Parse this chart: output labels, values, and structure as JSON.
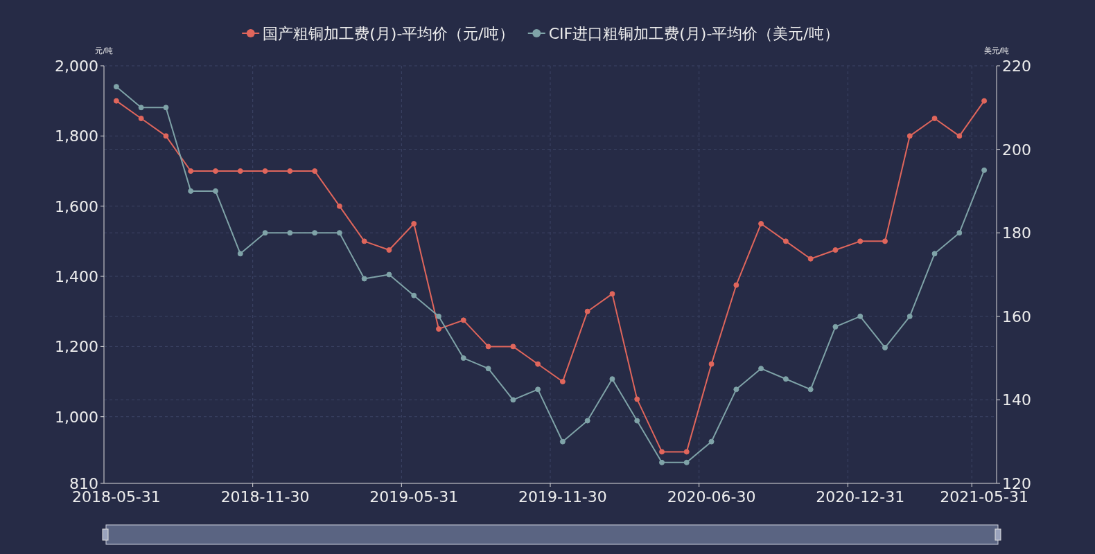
{
  "chart_data": {
    "type": "line",
    "categories": [
      "2018-05-31",
      null,
      null,
      null,
      null,
      null,
      "2018-11-30",
      null,
      null,
      null,
      null,
      null,
      "2019-05-31",
      null,
      null,
      null,
      null,
      null,
      "2019-11-30",
      null,
      null,
      null,
      null,
      null,
      "2020-06-30",
      null,
      null,
      null,
      null,
      null,
      "2020-12-31",
      null,
      null,
      null,
      null,
      "2021-05-31"
    ],
    "series": [
      {
        "name": "国产粗铜加工费(月)-平均价（元/吨）",
        "color": "#e0665c",
        "values": [
          1900,
          1850,
          1800,
          1700,
          1700,
          1700,
          1700,
          1700,
          1700,
          1600,
          1500,
          1475,
          1550,
          1250,
          1275,
          1200,
          1200,
          1150,
          1100,
          1300,
          1350,
          1050,
          900,
          900,
          1150,
          1375,
          1550,
          1500,
          1450,
          1475,
          1500,
          1500,
          1800,
          1850,
          1800,
          1900
        ]
      },
      {
        "name": "CIF进口粗铜加工费(月)-平均价（美元/吨）",
        "color": "#7fa3a8",
        "axis": "y2",
        "values": [
          215,
          210,
          210,
          190,
          190,
          175,
          180,
          180,
          180,
          180,
          169,
          170,
          165,
          160,
          150,
          147.5,
          140,
          142.5,
          130,
          135,
          145,
          135,
          125,
          125,
          130,
          142.5,
          147.5,
          145,
          142.5,
          157.5,
          160,
          152.5,
          160,
          175,
          180,
          195
        ]
      }
    ],
    "ylabel": "元/吨",
    "y2label": "美元/吨",
    "ylim": [
      810,
      2000
    ],
    "yticks": [
      810,
      {
        "value": 1000,
        "label": "1,000"
      },
      {
        "value": 1200,
        "label": "1,200"
      },
      {
        "value": 1400,
        "label": "1,400"
      },
      {
        "value": 1600,
        "label": "1,600"
      },
      {
        "value": 1800,
        "label": "1,800"
      },
      {
        "value": 2000,
        "label": "2,000"
      }
    ],
    "y2lim": [
      120,
      220
    ],
    "y2ticks": [
      120,
      140,
      160,
      180,
      200,
      220
    ],
    "grid": true,
    "legend": "top",
    "marker": "circle",
    "line_style": "solid"
  }
}
